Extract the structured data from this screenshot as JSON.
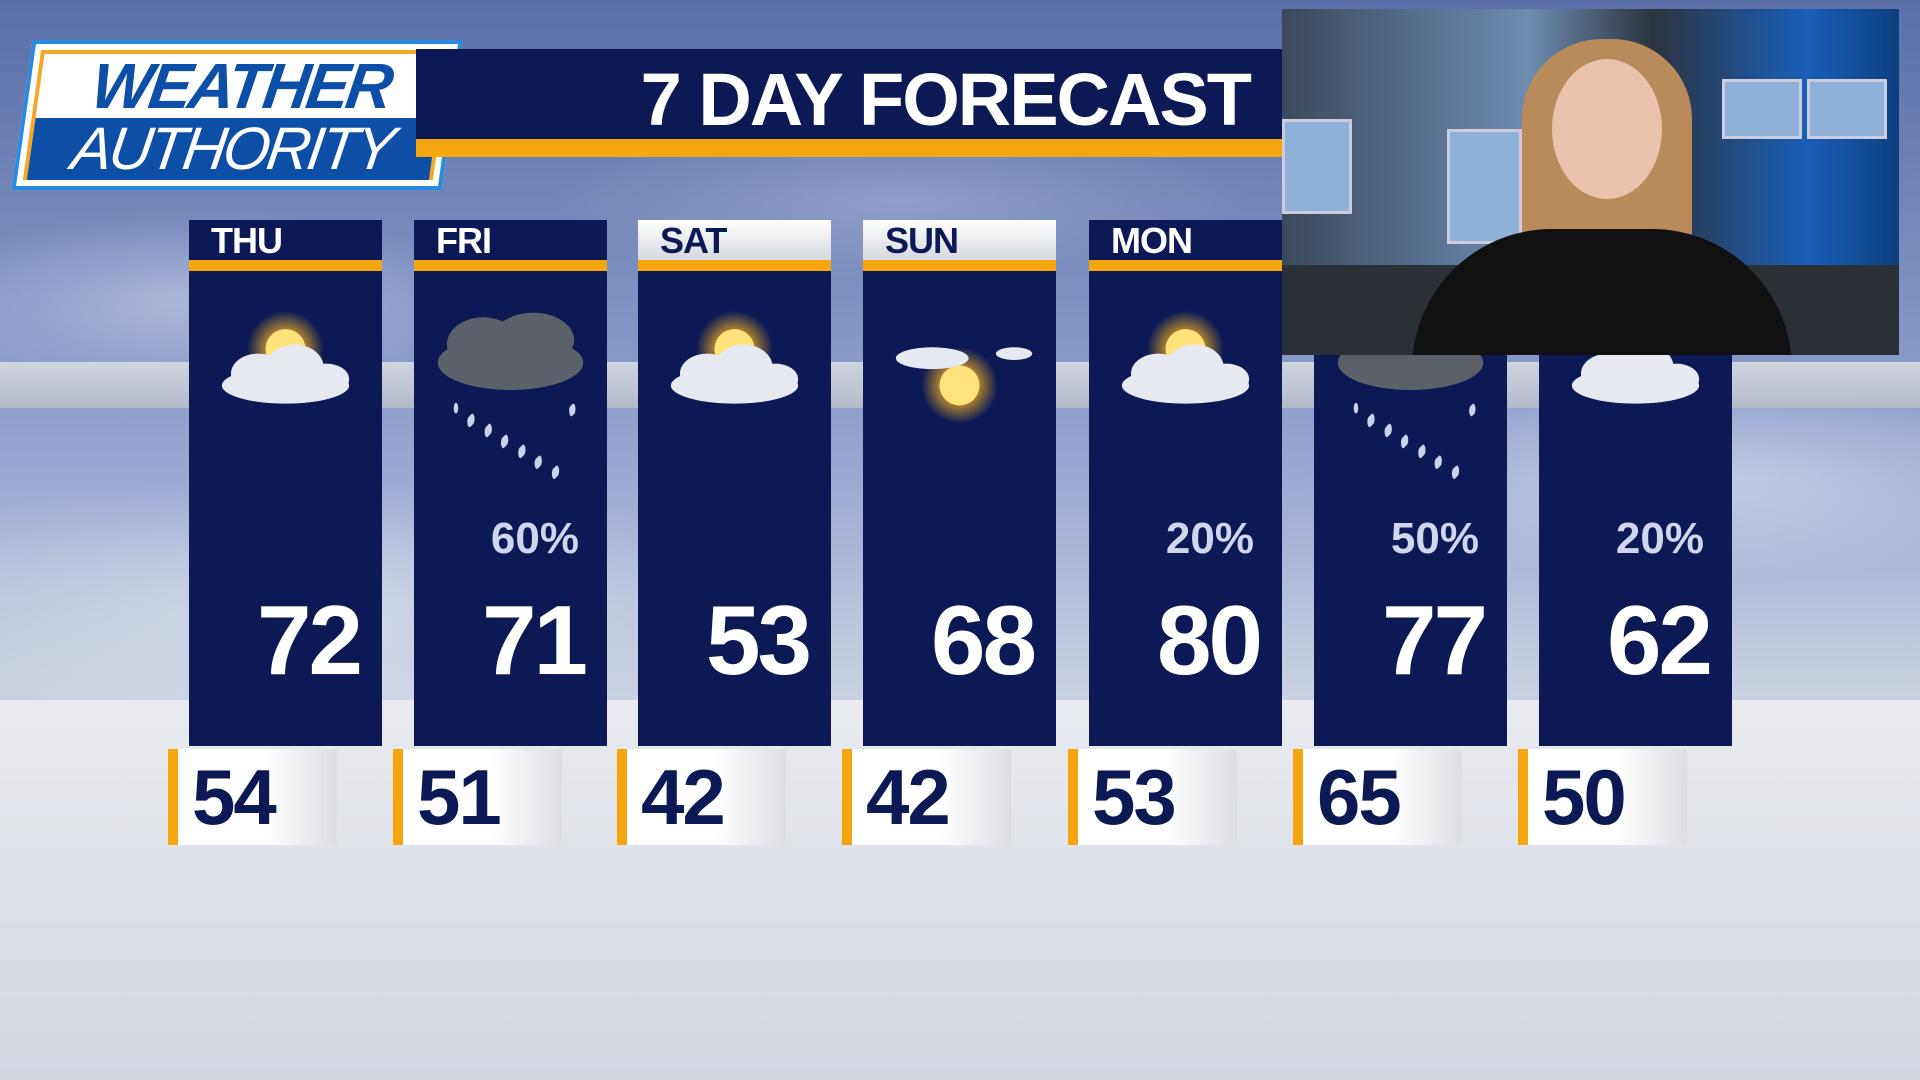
{
  "logo": {
    "line1": "WEATHER",
    "line2": "AUTHORITY"
  },
  "header": {
    "title": "7 DAY FORECAST"
  },
  "colors": {
    "navy": "#0b1a55",
    "orange": "#f5a50f",
    "logo_blue": "#0d4fa6"
  },
  "days": [
    {
      "label": "THU",
      "icon": "partly-sunny-icon",
      "precip": "",
      "high": "72",
      "low": "54"
    },
    {
      "label": "FRI",
      "icon": "rain-icon",
      "precip": "60%",
      "high": "71",
      "low": "51"
    },
    {
      "label": "SAT",
      "icon": "partly-sunny-icon",
      "precip": "",
      "high": "53",
      "low": "42"
    },
    {
      "label": "SUN",
      "icon": "mostly-sunny-icon",
      "precip": "",
      "high": "68",
      "low": "42"
    },
    {
      "label": "MON",
      "icon": "partly-sunny-icon",
      "precip": "20%",
      "high": "80",
      "low": "53"
    },
    {
      "label": "",
      "icon": "rain-icon",
      "precip": "50%",
      "high": "77",
      "low": "65"
    },
    {
      "label": "",
      "icon": "partly-sunny-icon",
      "precip": "20%",
      "high": "62",
      "low": "50"
    }
  ]
}
